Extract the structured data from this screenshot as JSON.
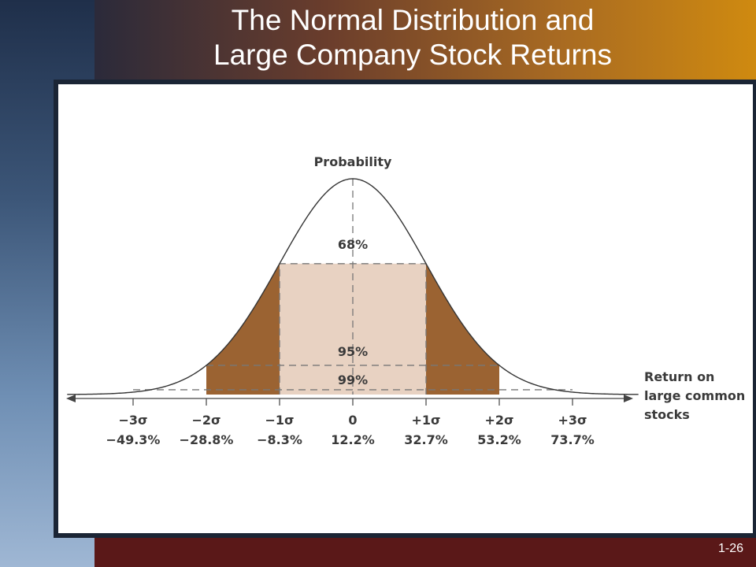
{
  "slide": {
    "title_line1": "The Normal Distribution and",
    "title_line2": "Large Company Stock Returns",
    "number": "1-26"
  },
  "diagram": {
    "y_axis_label": "Probability",
    "x_axis_label": [
      "Return on",
      "large common",
      "stocks"
    ],
    "band_labels": {
      "one_sigma": "68%",
      "two_sigma": "95%",
      "three_sigma": "99%"
    },
    "ticks": [
      {
        "sigma": -3,
        "label": "−3σ",
        "value": "−49.3%"
      },
      {
        "sigma": -2,
        "label": "−2σ",
        "value": "−28.8%"
      },
      {
        "sigma": -1,
        "label": "−1σ",
        "value": "−8.3%"
      },
      {
        "sigma": 0,
        "label": "0",
        "value": "12.2%"
      },
      {
        "sigma": 1,
        "label": "+1σ",
        "value": "32.7%"
      },
      {
        "sigma": 2,
        "label": "+2σ",
        "value": "53.2%"
      },
      {
        "sigma": 3,
        "label": "+3σ",
        "value": "73.7%"
      }
    ],
    "colors": {
      "tail_fill": "#9b6332",
      "center_fill": "#e8d2c2",
      "curve": "#333333",
      "dash": "#777777"
    }
  }
}
